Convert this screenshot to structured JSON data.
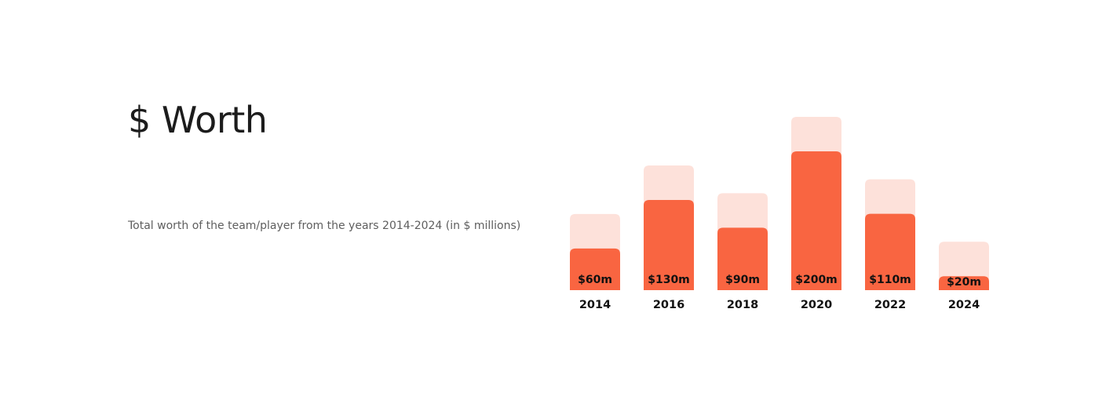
{
  "header": {
    "title": "$ Worth",
    "subtitle": "Total worth of the team/player from the years 2014-2024 (in $ millions)"
  },
  "colors": {
    "bar": "#f96541",
    "bar_background": "#fde1da",
    "text": "#111111"
  },
  "chart_data": {
    "type": "bar",
    "categories": [
      "2014",
      "2016",
      "2018",
      "2020",
      "2022",
      "2024"
    ],
    "values": [
      60,
      130,
      90,
      200,
      110,
      20
    ],
    "value_labels": [
      "$60m",
      "$130m",
      "$90m",
      "$200m",
      "$110m",
      "$20m"
    ],
    "title": "",
    "xlabel": "",
    "ylabel": "",
    "ylim": [
      0,
      200
    ],
    "grid": false,
    "legend": "none"
  }
}
